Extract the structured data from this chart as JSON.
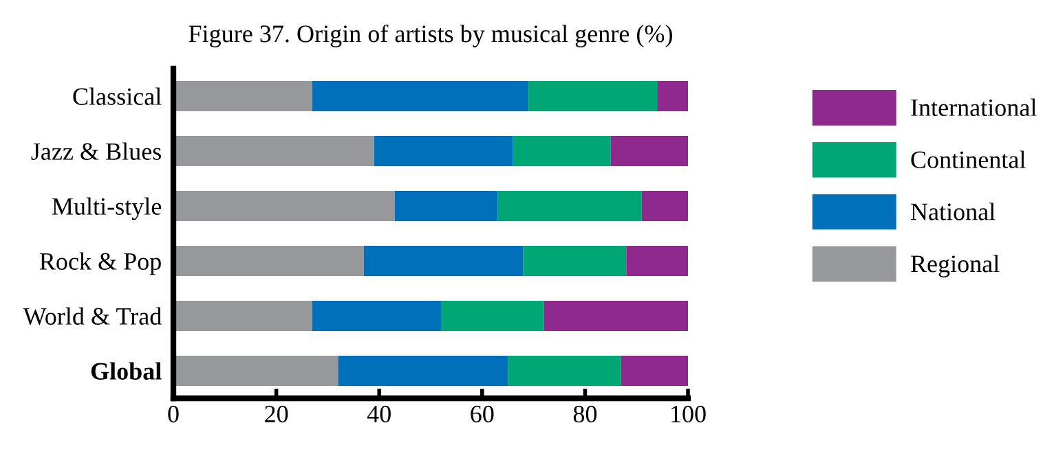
{
  "chart_data": {
    "type": "bar",
    "orientation": "horizontal",
    "stacked": true,
    "title": "Figure 37. Origin of artists by musical genre (%)",
    "categories": [
      "Classical",
      "Jazz & Blues",
      "Multi-style",
      "Rock & Pop",
      "World & Trad",
      "Global"
    ],
    "series": [
      {
        "name": "Regional",
        "color": "#97989b",
        "values": [
          27,
          39,
          43,
          37,
          27,
          32
        ]
      },
      {
        "name": "National",
        "color": "#0070bb",
        "values": [
          42,
          27,
          20,
          31,
          25,
          33
        ]
      },
      {
        "name": "Continental",
        "color": "#00a674",
        "values": [
          25,
          19,
          28,
          20,
          20,
          22
        ]
      },
      {
        "name": "International",
        "color": "#90298d",
        "values": [
          6,
          15,
          9,
          12,
          28,
          13
        ]
      }
    ],
    "xlim": [
      0,
      100
    ],
    "xticks": [
      0,
      20,
      40,
      60,
      80,
      100
    ],
    "grid": false,
    "legend": "right"
  }
}
